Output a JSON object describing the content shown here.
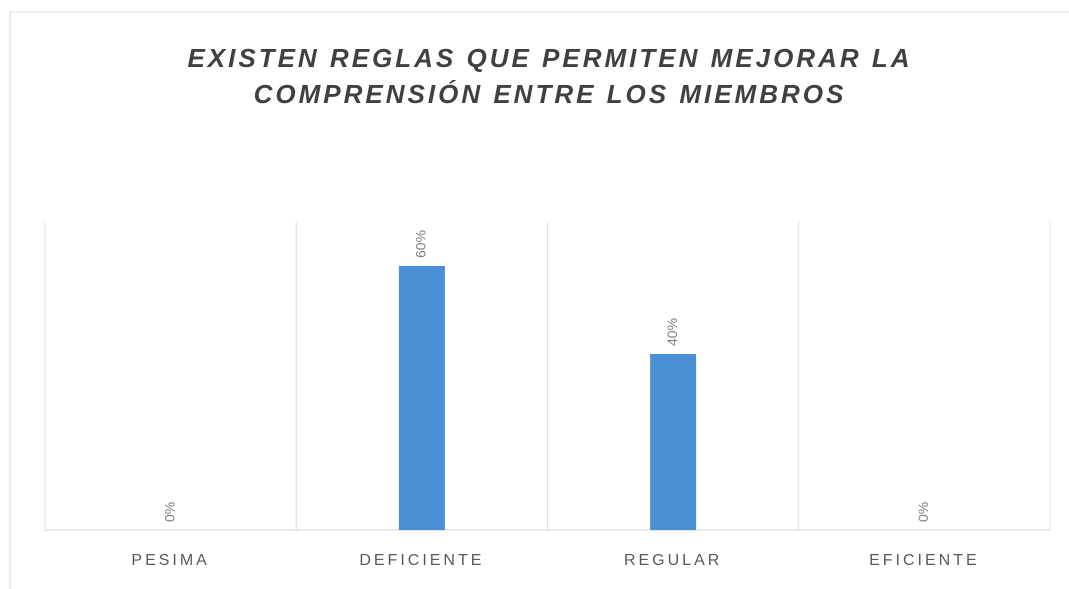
{
  "chart_data": {
    "type": "bar",
    "title": "EXISTEN REGLAS QUE PERMITEN MEJORAR LA COMPRENSIÓN ENTRE LOS MIEMBROS",
    "categories": [
      "PESIMA",
      "DEFICIENTE",
      "REGULAR",
      "EFICIENTE"
    ],
    "values": [
      0,
      60,
      40,
      0
    ],
    "value_labels": [
      "0%",
      "60%",
      "40%",
      "0%"
    ],
    "color": "#4a8fd4",
    "ylim": [
      0,
      70
    ]
  }
}
